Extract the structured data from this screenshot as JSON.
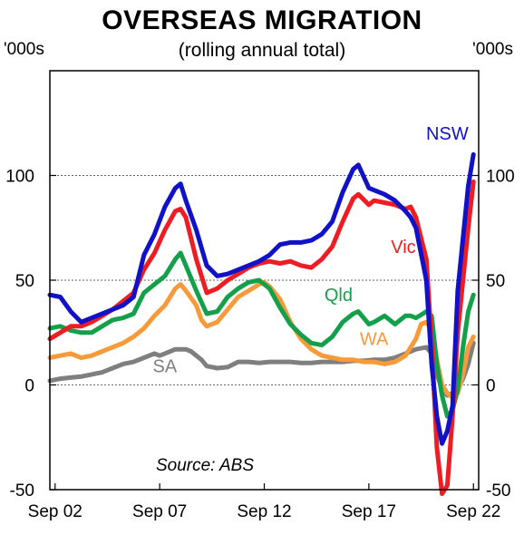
{
  "chart_data": {
    "type": "line",
    "title": "OVERSEAS MIGRATION",
    "subtitle": "(rolling annual total)",
    "ylabel_left": "'000s",
    "ylabel_right": "'000s",
    "source": "Source: ABS",
    "ylim": [
      -50,
      150
    ],
    "yticks": [
      -50,
      0,
      50,
      100
    ],
    "xlim": [
      2002.5,
      2023.0
    ],
    "xticks": [
      {
        "x": 2002.75,
        "label": "Sep 02"
      },
      {
        "x": 2007.75,
        "label": "Sep 07"
      },
      {
        "x": 2012.75,
        "label": "Sep 12"
      },
      {
        "x": 2017.75,
        "label": "Sep 17"
      },
      {
        "x": 2022.75,
        "label": "Sep 22"
      }
    ],
    "dashed_gridlines": [
      0,
      50,
      100
    ],
    "series": [
      {
        "name": "SA",
        "color": "#7f7f7f",
        "label_pos": [
          2008.0,
          6
        ],
        "points": [
          [
            2002.5,
            2
          ],
          [
            2003.0,
            3
          ],
          [
            2003.5,
            3.5
          ],
          [
            2004.0,
            4
          ],
          [
            2004.5,
            5
          ],
          [
            2005.0,
            6
          ],
          [
            2005.5,
            8
          ],
          [
            2006.0,
            10
          ],
          [
            2006.5,
            11
          ],
          [
            2007.0,
            13
          ],
          [
            2007.5,
            15
          ],
          [
            2007.75,
            14
          ],
          [
            2008.0,
            15
          ],
          [
            2008.5,
            17
          ],
          [
            2009.0,
            17
          ],
          [
            2009.25,
            16
          ],
          [
            2009.75,
            12
          ],
          [
            2010.0,
            9
          ],
          [
            2010.5,
            8
          ],
          [
            2011.0,
            8.5
          ],
          [
            2011.5,
            11
          ],
          [
            2012.0,
            11
          ],
          [
            2012.5,
            10.5
          ],
          [
            2013.0,
            11
          ],
          [
            2013.5,
            11
          ],
          [
            2014.0,
            11
          ],
          [
            2014.5,
            10.5
          ],
          [
            2015.0,
            10.5
          ],
          [
            2015.5,
            11
          ],
          [
            2016.0,
            11
          ],
          [
            2016.5,
            11
          ],
          [
            2017.0,
            11.5
          ],
          [
            2017.5,
            11.5
          ],
          [
            2018.0,
            12
          ],
          [
            2018.5,
            12
          ],
          [
            2019.0,
            13
          ],
          [
            2019.5,
            15
          ],
          [
            2020.0,
            17
          ],
          [
            2020.5,
            18
          ],
          [
            2020.75,
            15
          ],
          [
            2021.0,
            5
          ],
          [
            2021.25,
            -2
          ],
          [
            2021.5,
            -5
          ],
          [
            2021.75,
            -4
          ],
          [
            2022.0,
            -2
          ],
          [
            2022.25,
            3
          ],
          [
            2022.5,
            10
          ],
          [
            2022.75,
            20
          ]
        ]
      },
      {
        "name": "WA",
        "color": "#f79a3a",
        "label_pos": [
          2018.0,
          19
        ],
        "points": [
          [
            2002.5,
            13
          ],
          [
            2003.0,
            14
          ],
          [
            2003.5,
            15
          ],
          [
            2004.0,
            13
          ],
          [
            2004.5,
            14
          ],
          [
            2005.0,
            16
          ],
          [
            2005.5,
            18
          ],
          [
            2006.0,
            20
          ],
          [
            2006.5,
            23
          ],
          [
            2007.0,
            27
          ],
          [
            2007.5,
            33
          ],
          [
            2008.0,
            38
          ],
          [
            2008.5,
            46
          ],
          [
            2008.75,
            48
          ],
          [
            2009.0,
            45
          ],
          [
            2009.5,
            38
          ],
          [
            2009.75,
            31
          ],
          [
            2010.0,
            28
          ],
          [
            2010.5,
            30
          ],
          [
            2011.0,
            36
          ],
          [
            2011.5,
            42
          ],
          [
            2012.0,
            45
          ],
          [
            2012.5,
            48
          ],
          [
            2012.75,
            49
          ],
          [
            2013.0,
            47
          ],
          [
            2013.5,
            41
          ],
          [
            2014.0,
            30
          ],
          [
            2014.5,
            22
          ],
          [
            2015.0,
            17
          ],
          [
            2015.5,
            14
          ],
          [
            2016.0,
            13
          ],
          [
            2016.5,
            12
          ],
          [
            2017.0,
            12
          ],
          [
            2017.5,
            11
          ],
          [
            2018.0,
            11
          ],
          [
            2018.5,
            10
          ],
          [
            2019.0,
            11
          ],
          [
            2019.5,
            14
          ],
          [
            2020.0,
            22
          ],
          [
            2020.25,
            29
          ],
          [
            2020.5,
            30
          ],
          [
            2020.75,
            26
          ],
          [
            2021.0,
            12
          ],
          [
            2021.25,
            0
          ],
          [
            2021.5,
            -4
          ],
          [
            2021.75,
            -6
          ],
          [
            2022.0,
            -4
          ],
          [
            2022.25,
            5
          ],
          [
            2022.5,
            18
          ],
          [
            2022.75,
            23
          ]
        ]
      },
      {
        "name": "Qld",
        "color": "#14a04a",
        "label_pos": [
          2016.3,
          40
        ],
        "points": [
          [
            2002.5,
            27
          ],
          [
            2003.0,
            28
          ],
          [
            2003.5,
            26
          ],
          [
            2004.0,
            25
          ],
          [
            2004.5,
            25
          ],
          [
            2005.0,
            28
          ],
          [
            2005.5,
            31
          ],
          [
            2006.0,
            32
          ],
          [
            2006.5,
            34
          ],
          [
            2007.0,
            44
          ],
          [
            2007.5,
            48
          ],
          [
            2008.0,
            52
          ],
          [
            2008.5,
            60
          ],
          [
            2008.75,
            63
          ],
          [
            2009.0,
            57
          ],
          [
            2009.5,
            45
          ],
          [
            2010.0,
            34
          ],
          [
            2010.5,
            35
          ],
          [
            2011.0,
            42
          ],
          [
            2011.5,
            46
          ],
          [
            2012.0,
            49
          ],
          [
            2012.5,
            50
          ],
          [
            2013.0,
            46
          ],
          [
            2013.5,
            37
          ],
          [
            2014.0,
            29
          ],
          [
            2014.5,
            24
          ],
          [
            2015.0,
            20
          ],
          [
            2015.5,
            19
          ],
          [
            2016.0,
            23
          ],
          [
            2016.5,
            30
          ],
          [
            2017.0,
            34
          ],
          [
            2017.25,
            35
          ],
          [
            2017.75,
            29
          ],
          [
            2018.0,
            30
          ],
          [
            2018.5,
            33
          ],
          [
            2019.0,
            29
          ],
          [
            2019.5,
            33
          ],
          [
            2019.75,
            33
          ],
          [
            2020.0,
            32
          ],
          [
            2020.5,
            35
          ],
          [
            2020.75,
            33
          ],
          [
            2021.0,
            10
          ],
          [
            2021.25,
            -5
          ],
          [
            2021.5,
            -15
          ],
          [
            2021.75,
            -12
          ],
          [
            2022.0,
            -2
          ],
          [
            2022.25,
            18
          ],
          [
            2022.5,
            35
          ],
          [
            2022.75,
            43
          ]
        ]
      },
      {
        "name": "Vic",
        "color": "#ee1d23",
        "label_pos": [
          2019.4,
          63
        ],
        "points": [
          [
            2002.5,
            22
          ],
          [
            2003.0,
            25
          ],
          [
            2003.5,
            28
          ],
          [
            2004.0,
            28
          ],
          [
            2004.5,
            30
          ],
          [
            2005.0,
            33
          ],
          [
            2005.5,
            36
          ],
          [
            2006.0,
            40
          ],
          [
            2006.5,
            44
          ],
          [
            2007.0,
            55
          ],
          [
            2007.5,
            63
          ],
          [
            2008.0,
            74
          ],
          [
            2008.5,
            83
          ],
          [
            2008.75,
            84
          ],
          [
            2009.0,
            80
          ],
          [
            2009.5,
            60
          ],
          [
            2010.0,
            44
          ],
          [
            2010.5,
            46
          ],
          [
            2011.0,
            50
          ],
          [
            2011.5,
            53
          ],
          [
            2012.0,
            56
          ],
          [
            2012.5,
            58
          ],
          [
            2013.0,
            59
          ],
          [
            2013.5,
            58
          ],
          [
            2014.0,
            59
          ],
          [
            2014.5,
            57
          ],
          [
            2015.0,
            56
          ],
          [
            2015.5,
            60
          ],
          [
            2016.0,
            66
          ],
          [
            2016.5,
            78
          ],
          [
            2017.0,
            89
          ],
          [
            2017.25,
            91
          ],
          [
            2017.75,
            86
          ],
          [
            2018.0,
            88
          ],
          [
            2018.5,
            87
          ],
          [
            2019.0,
            86
          ],
          [
            2019.5,
            84
          ],
          [
            2019.75,
            85
          ],
          [
            2020.0,
            80
          ],
          [
            2020.5,
            60
          ],
          [
            2020.75,
            20
          ],
          [
            2021.0,
            -30
          ],
          [
            2021.25,
            -52
          ],
          [
            2021.5,
            -48
          ],
          [
            2021.75,
            -15
          ],
          [
            2022.0,
            25
          ],
          [
            2022.25,
            50
          ],
          [
            2022.5,
            75
          ],
          [
            2022.75,
            97
          ]
        ]
      },
      {
        "name": "NSW",
        "color": "#1111c8",
        "label_pos": [
          2021.5,
          117
        ],
        "points": [
          [
            2002.5,
            43
          ],
          [
            2003.0,
            42
          ],
          [
            2003.5,
            35
          ],
          [
            2004.0,
            30
          ],
          [
            2004.5,
            32
          ],
          [
            2005.0,
            34
          ],
          [
            2005.5,
            36
          ],
          [
            2006.0,
            38
          ],
          [
            2006.5,
            42
          ],
          [
            2007.0,
            62
          ],
          [
            2007.5,
            72
          ],
          [
            2008.0,
            85
          ],
          [
            2008.5,
            94
          ],
          [
            2008.75,
            96
          ],
          [
            2009.0,
            88
          ],
          [
            2009.5,
            74
          ],
          [
            2010.0,
            57
          ],
          [
            2010.5,
            52
          ],
          [
            2011.0,
            53
          ],
          [
            2011.5,
            55
          ],
          [
            2012.0,
            57
          ],
          [
            2012.5,
            59
          ],
          [
            2013.0,
            62
          ],
          [
            2013.5,
            67
          ],
          [
            2014.0,
            68
          ],
          [
            2014.5,
            68
          ],
          [
            2015.0,
            69
          ],
          [
            2015.5,
            72
          ],
          [
            2016.0,
            78
          ],
          [
            2016.5,
            92
          ],
          [
            2017.0,
            103
          ],
          [
            2017.25,
            105
          ],
          [
            2017.75,
            94
          ],
          [
            2018.0,
            93
          ],
          [
            2018.5,
            91
          ],
          [
            2019.0,
            88
          ],
          [
            2019.5,
            83
          ],
          [
            2019.75,
            80
          ],
          [
            2020.0,
            75
          ],
          [
            2020.5,
            50
          ],
          [
            2020.75,
            10
          ],
          [
            2021.0,
            -15
          ],
          [
            2021.25,
            -28
          ],
          [
            2021.5,
            -22
          ],
          [
            2021.75,
            -10
          ],
          [
            2022.0,
            45
          ],
          [
            2022.25,
            70
          ],
          [
            2022.5,
            95
          ],
          [
            2022.75,
            110
          ]
        ]
      }
    ]
  }
}
